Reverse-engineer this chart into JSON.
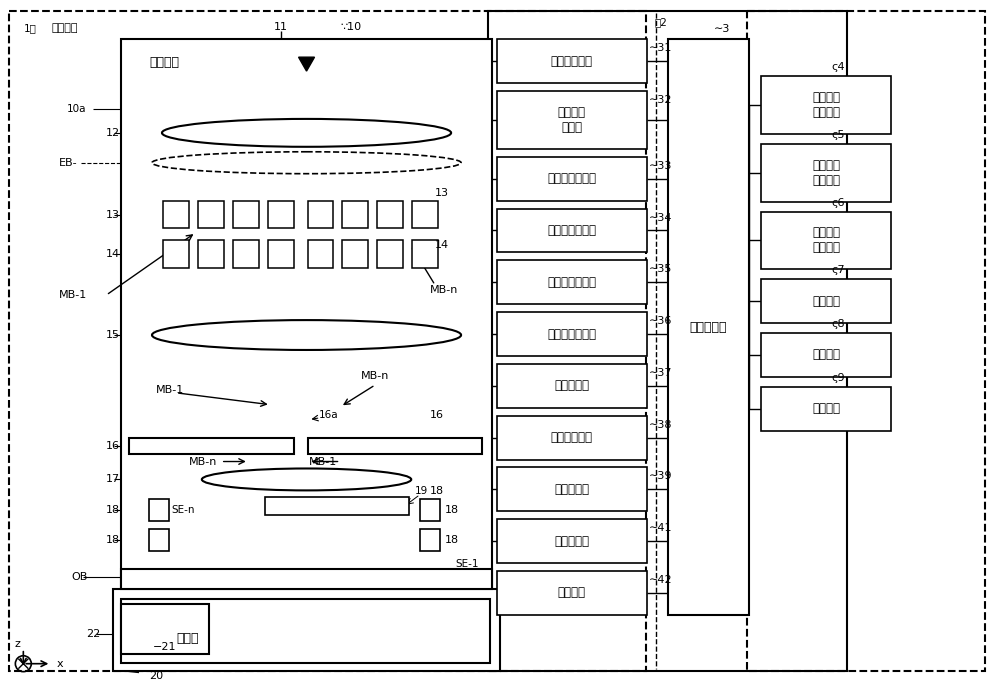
{
  "fig_width": 10.0,
  "fig_height": 6.85,
  "right_boxes": [
    {
      "label": "31",
      "text": "电子枪控制部",
      "lines": 1
    },
    {
      "label": "32",
      "text": "照明透镜\n控制部",
      "lines": 2
    },
    {
      "label": "33",
      "text": "成形孔径控制部",
      "lines": 1
    },
    {
      "label": "34",
      "text": "消隐孔径控制部",
      "lines": 1
    },
    {
      "label": "35",
      "text": "缩小透镜控制部",
      "lines": 1
    },
    {
      "label": "36",
      "text": "限制孔径控制部",
      "lines": 1
    },
    {
      "label": "37",
      "text": "物镜控制部",
      "lines": 1
    },
    {
      "label": "38",
      "text": "偏转器控制部",
      "lines": 1
    },
    {
      "label": "39",
      "text": "信号处理部",
      "lines": 1
    },
    {
      "label": "41",
      "text": "图像生成部",
      "lines": 1
    },
    {
      "label": "42",
      "text": "台控制部",
      "lines": 1
    }
  ],
  "far_right_boxes": [
    {
      "label": "4",
      "text": "图案信息\n存储装置"
    },
    {
      "label": "5",
      "text": "材质信息\n存储装置"
    },
    {
      "label": "6",
      "text": "预照射图\n存储装置"
    },
    {
      "label": "7",
      "text": "存储装置"
    },
    {
      "label": "8",
      "text": "显示装置"
    },
    {
      "label": "9",
      "text": "输入装置"
    }
  ],
  "control_text": "控制计算机",
  "column_text": "电子镜筒",
  "sample_text": "试样室",
  "inspect_text": "检查机构"
}
